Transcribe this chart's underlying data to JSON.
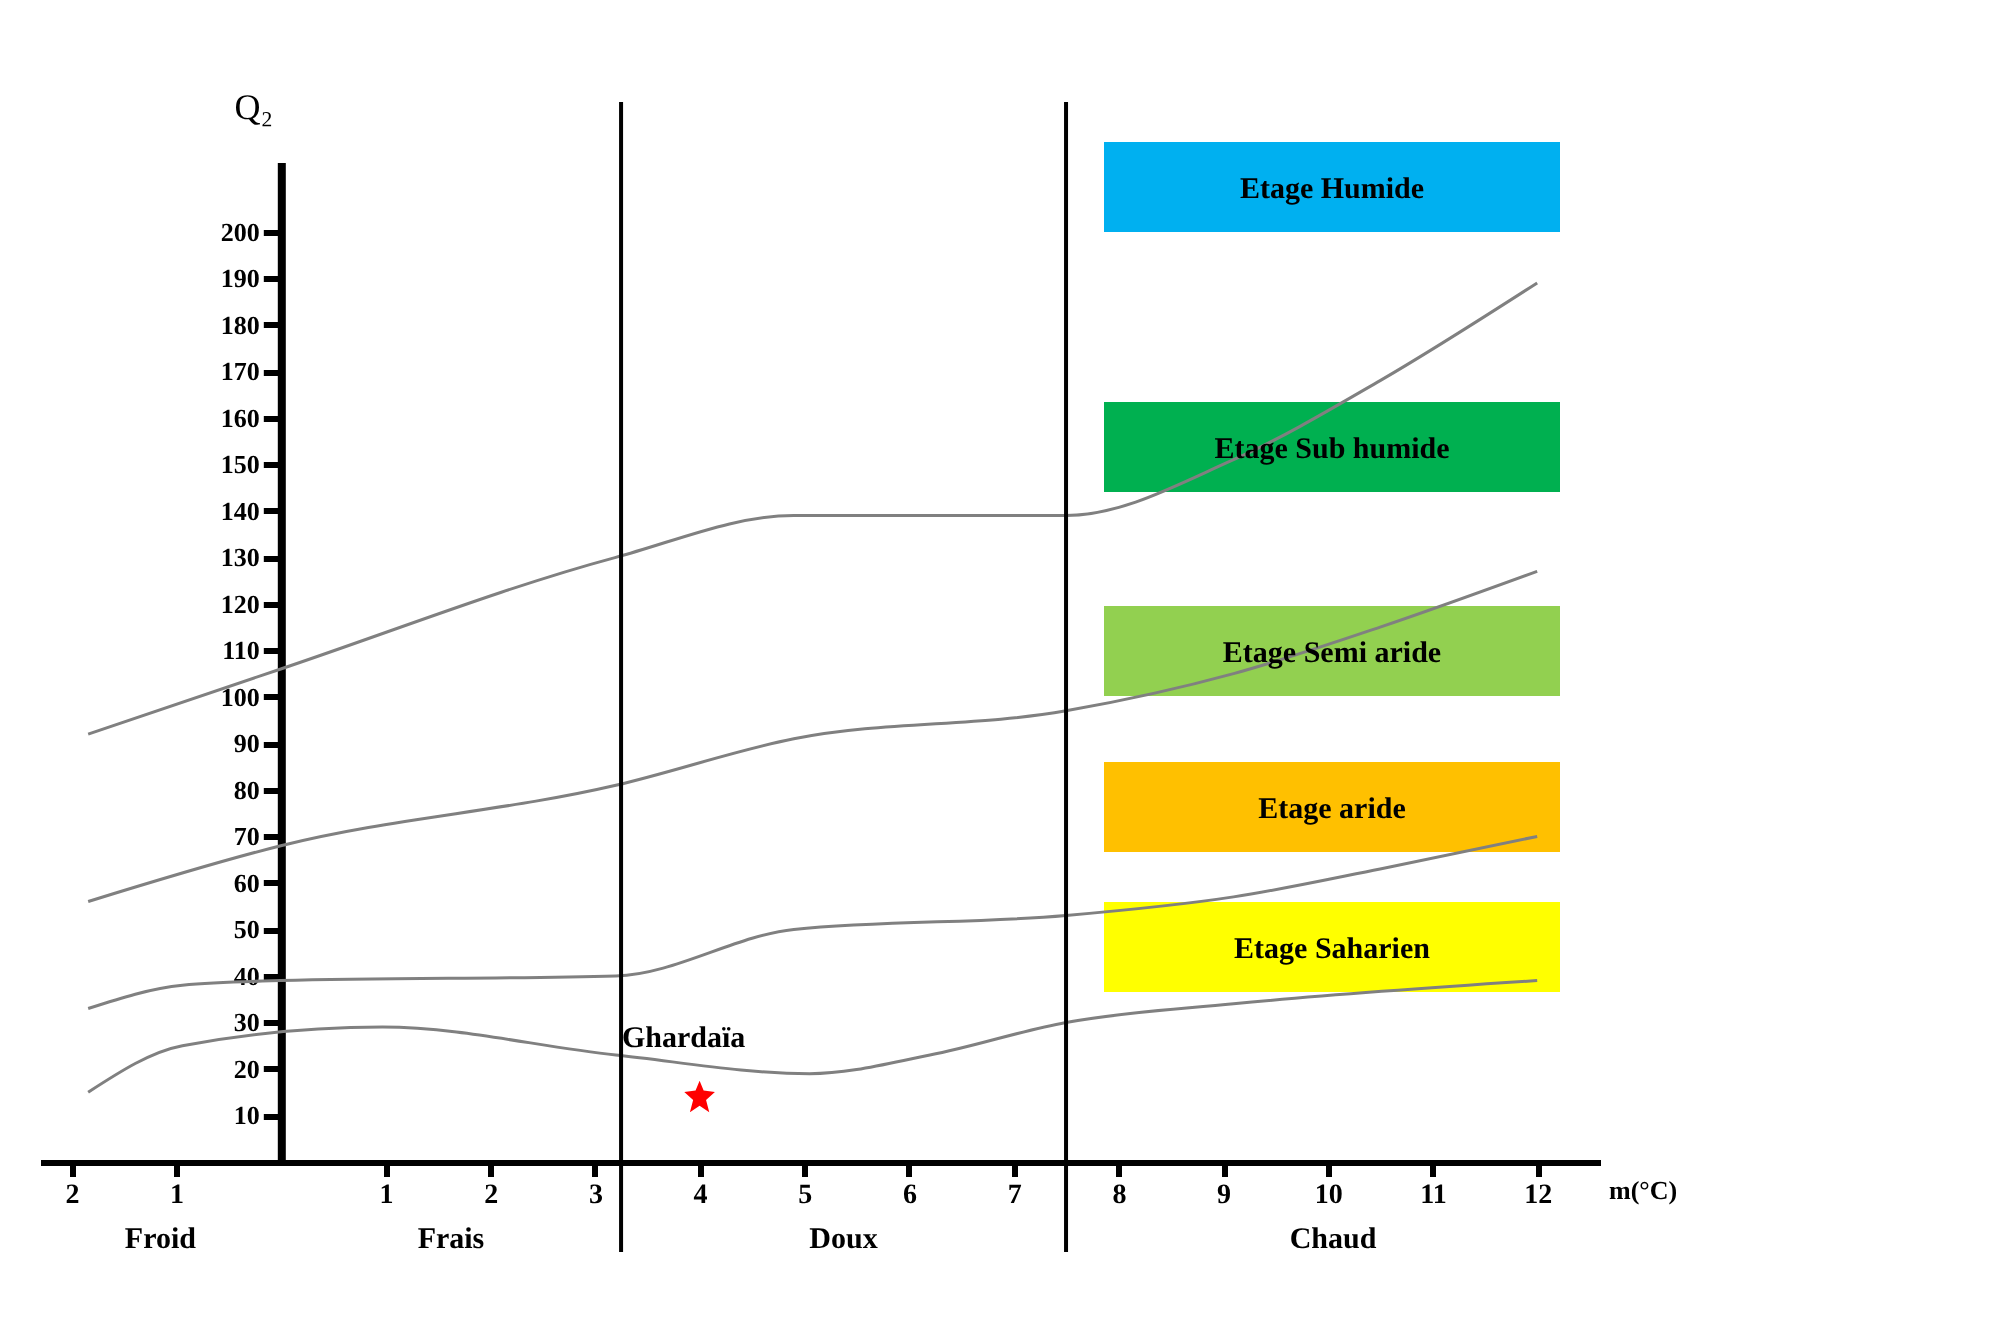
{
  "chart_data": {
    "type": "line",
    "xlabel": "m(°C)",
    "ylabel": "Q₂",
    "xlim": [
      -2.3,
      12.6
    ],
    "ylim": [
      0,
      215
    ],
    "xticks": [
      {
        "value": -2,
        "label": "2"
      },
      {
        "value": -1,
        "label": "1"
      },
      1,
      2,
      3,
      4,
      5,
      6,
      7,
      8,
      9,
      10,
      11,
      12
    ],
    "yticks": [
      10,
      20,
      30,
      40,
      50,
      60,
      70,
      80,
      90,
      100,
      110,
      120,
      130,
      140,
      150,
      160,
      170,
      180,
      190,
      200
    ],
    "series": [
      {
        "color": "#808080",
        "x": [
          -1.84,
          0,
          3.2,
          4.9,
          7.5,
          9.1,
          10.5,
          12
        ],
        "values": [
          92,
          106,
          130,
          139,
          139,
          151,
          168,
          189
        ]
      },
      {
        "color": "#808080",
        "x": [
          -1.84,
          0,
          3.2,
          4.9,
          7.5,
          9.1,
          10.5,
          12
        ],
        "values": [
          56,
          68,
          81,
          91,
          97,
          105,
          115,
          127
        ]
      },
      {
        "color": "#808080",
        "x": [
          -1.84,
          -0.94,
          0,
          3.2,
          4.9,
          7.5,
          9.1,
          10.5,
          12
        ],
        "values": [
          33,
          38,
          39,
          40,
          50,
          53,
          57,
          63,
          70
        ]
      },
      {
        "color": "#808080",
        "x": [
          -1.84,
          -0.94,
          0.97,
          3.2,
          5.05,
          6.2,
          7.5,
          9.1,
          12
        ],
        "values": [
          15,
          25,
          29,
          23,
          19,
          23,
          30,
          34,
          39
        ]
      },
      {
        "type": "scatter",
        "name": "Ghardaïa",
        "color": "#ff0000",
        "marker": "star",
        "x": [
          4
        ],
        "values": [
          14
        ]
      }
    ],
    "ref_lines": [
      {
        "axis": "x",
        "value": 3.25,
        "color": "#000000"
      },
      {
        "axis": "x",
        "value": 7.5,
        "color": "#000000"
      }
    ],
    "annotations": [
      "Froid",
      "Frais",
      "Doux",
      "Chaud",
      "Etage Humide",
      "Etage Sub humide",
      "Etage Semi  aride",
      "Etage aride",
      "Etage Saharien"
    ],
    "grid": false,
    "legend": false
  }
}
